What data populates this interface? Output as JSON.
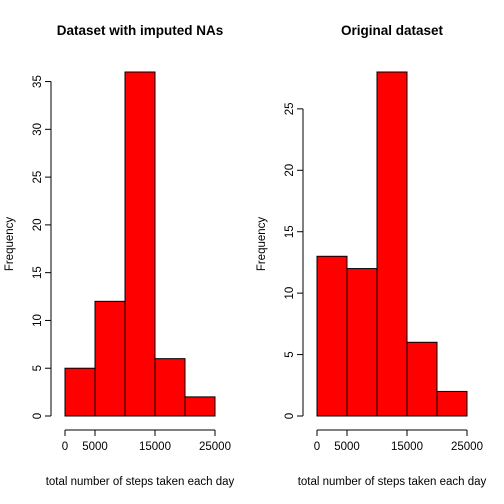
{
  "chart_data": [
    {
      "type": "bar",
      "title": "Dataset with imputed NAs",
      "xlabel": "total number of steps taken each day",
      "ylabel": "Frequency",
      "bin_edges": [
        0,
        5000,
        10000,
        15000,
        20000,
        25000
      ],
      "values": [
        5,
        12,
        36,
        6,
        2
      ],
      "xticks": [
        0,
        5000,
        15000,
        25000
      ],
      "yticks": [
        0,
        5,
        10,
        15,
        20,
        25,
        30,
        35
      ],
      "xlim": [
        0,
        25000
      ],
      "ylim": [
        0,
        36
      ],
      "bar_color": "#ff0000"
    },
    {
      "type": "bar",
      "title": "Original dataset",
      "xlabel": "total number of steps taken each day",
      "ylabel": "Frequency",
      "bin_edges": [
        0,
        5000,
        10000,
        15000,
        20000,
        25000
      ],
      "values": [
        13,
        12,
        28,
        6,
        2
      ],
      "xticks": [
        0,
        5000,
        15000,
        25000
      ],
      "yticks": [
        0,
        5,
        10,
        15,
        20,
        25
      ],
      "xlim": [
        0,
        25000
      ],
      "ylim": [
        0,
        28
      ],
      "bar_color": "#ff0000"
    }
  ]
}
